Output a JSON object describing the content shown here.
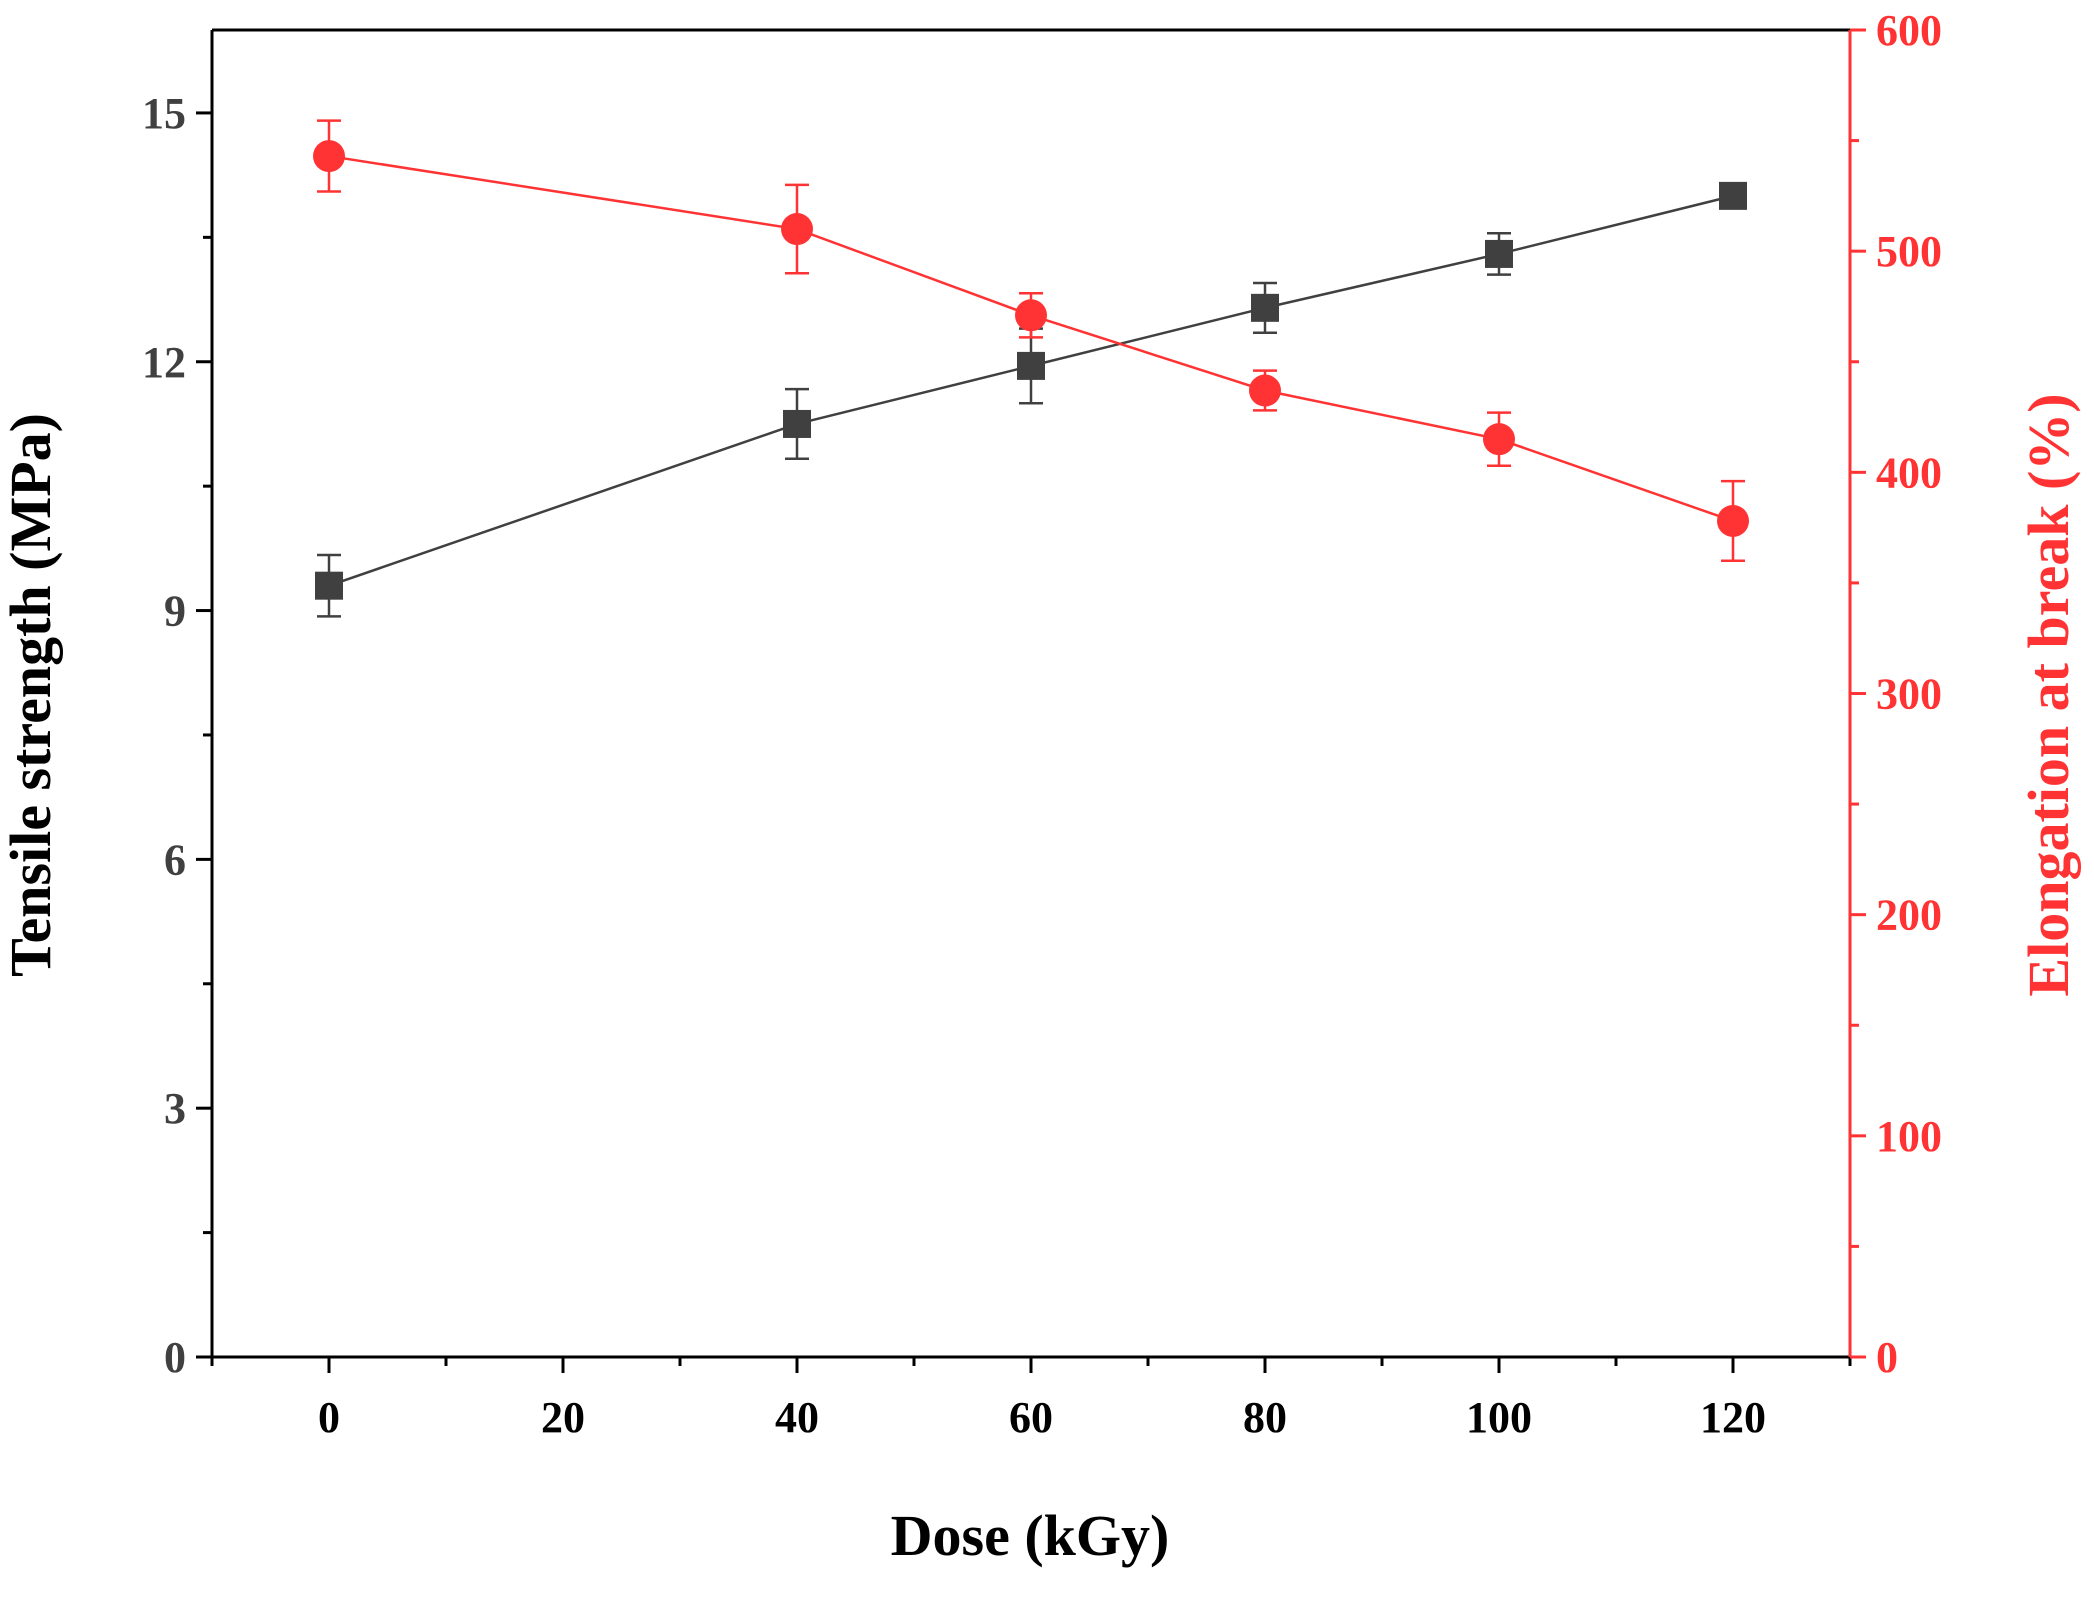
{
  "chart_data": {
    "type": "line",
    "title": "",
    "xlabel": "Dose (kGy)",
    "ylabel": "Tensile strength (MPa)",
    "y2label": "Elongation at break (%)",
    "xlim": [
      -10,
      130
    ],
    "ylim": [
      0,
      16
    ],
    "y2lim": [
      0,
      600
    ],
    "x_ticks": [
      0,
      20,
      40,
      60,
      80,
      100,
      120
    ],
    "x_tick_labels": [
      "0",
      "20",
      "40",
      "60",
      "80",
      "100",
      "120"
    ],
    "x_minor_ticks": [
      -10,
      10,
      30,
      50,
      70,
      90,
      110,
      130
    ],
    "y_ticks": [
      0,
      3,
      6,
      9,
      12,
      15
    ],
    "y_tick_labels": [
      "0",
      "3",
      "6",
      "9",
      "12",
      "15"
    ],
    "y_minor_ticks": [
      1.5,
      4.5,
      7.5,
      10.5,
      13.5
    ],
    "y2_ticks": [
      0,
      100,
      200,
      300,
      400,
      500,
      600
    ],
    "y2_tick_labels": [
      "0",
      "100",
      "200",
      "300",
      "400",
      "500",
      "600"
    ],
    "y2_minor_ticks": [
      50,
      150,
      250,
      350,
      450,
      550
    ],
    "grid": false,
    "legend": "none",
    "series": [
      {
        "name": "Tensile strength",
        "axis": "left",
        "marker": "square",
        "color": "#404040",
        "x": [
          0,
          40,
          60,
          80,
          100,
          120
        ],
        "values": [
          9.3,
          11.25,
          11.95,
          12.65,
          13.3,
          14.0
        ],
        "errors": [
          0.37,
          0.42,
          0.45,
          0.3,
          0.25,
          0.1
        ]
      },
      {
        "name": "Elongation at break",
        "axis": "right",
        "marker": "circle",
        "color": "#ff3333",
        "x": [
          0,
          40,
          60,
          80,
          100,
          120
        ],
        "values": [
          543,
          510,
          471,
          437,
          415,
          378
        ],
        "errors": [
          16,
          20,
          10,
          9,
          12,
          18
        ]
      }
    ]
  }
}
